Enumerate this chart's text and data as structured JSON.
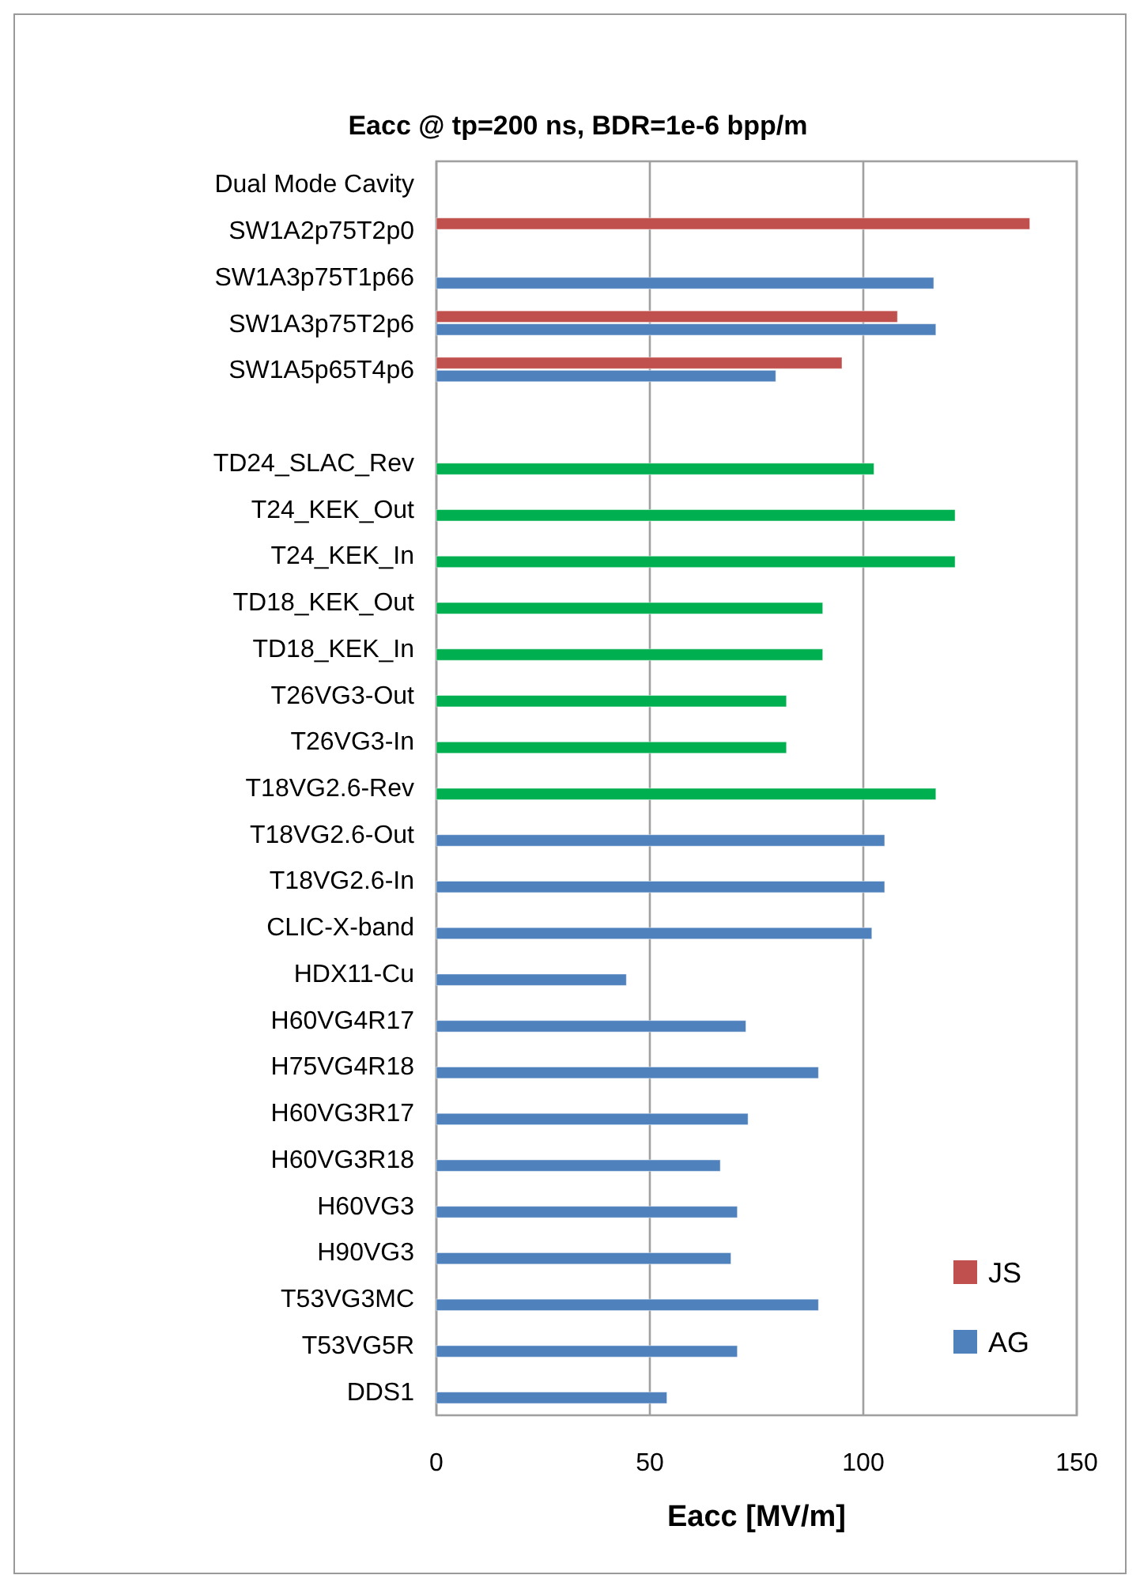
{
  "chart_data": {
    "type": "bar",
    "orientation": "horizontal",
    "title": "Eacc @ tp=200 ns, BDR=1e-6 bpp/m",
    "xlabel": "Eacc [MV/m]",
    "categories": [
      "Dual Mode Cavity",
      "SW1A2p75T2p0",
      "SW1A3p75T1p66",
      "SW1A3p75T2p6",
      "SW1A5p65T4p6",
      null,
      "TD24_SLAC_Rev",
      "T24_KEK_Out",
      "T24_KEK_In",
      "TD18_KEK_Out",
      "TD18_KEK_In",
      "T26VG3-Out",
      "T26VG3-In",
      "T18VG2.6-Rev",
      "T18VG2.6-Out",
      "T18VG2.6-In",
      "CLIC-X-band",
      "HDX11-Cu",
      "H60VG4R17",
      "H75VG4R18",
      "H60VG3R17",
      "H60VG3R18",
      "H60VG3",
      "H90VG3",
      "T53VG3MC",
      "T53VG5R",
      "DDS1"
    ],
    "series": [
      {
        "name": "JS",
        "color": "#c0504d",
        "values": [
          null,
          139,
          null,
          108,
          95,
          null,
          null,
          null,
          null,
          null,
          null,
          null,
          null,
          null,
          null,
          null,
          null,
          null,
          null,
          null,
          null,
          null,
          null,
          null,
          null,
          null,
          null
        ]
      },
      {
        "name": "AG",
        "color": "#4f81bd",
        "values": [
          null,
          null,
          116.5,
          117,
          79.5,
          null,
          102.5,
          121.5,
          121.5,
          90.5,
          90.5,
          82,
          82,
          117,
          105,
          105,
          102,
          44.5,
          72.5,
          89.5,
          73,
          66.5,
          70.5,
          69,
          89.5,
          70.5,
          54
        ],
        "colors": [
          "#4f81bd",
          "#4f81bd",
          "#4f81bd",
          "#4f81bd",
          "#4f81bd",
          "#4f81bd",
          "#00b050",
          "#00b050",
          "#00b050",
          "#00b050",
          "#00b050",
          "#00b050",
          "#00b050",
          "#00b050",
          "#4f81bd",
          "#4f81bd",
          "#4f81bd",
          "#4f81bd",
          "#4f81bd",
          "#4f81bd",
          "#4f81bd",
          "#4f81bd",
          "#4f81bd",
          "#4f81bd",
          "#4f81bd",
          "#4f81bd",
          "#4f81bd"
        ]
      }
    ],
    "xlim": [
      0,
      150
    ],
    "xticks": [
      0,
      50,
      100,
      150
    ],
    "grid": "x",
    "legend": "bottom right"
  }
}
